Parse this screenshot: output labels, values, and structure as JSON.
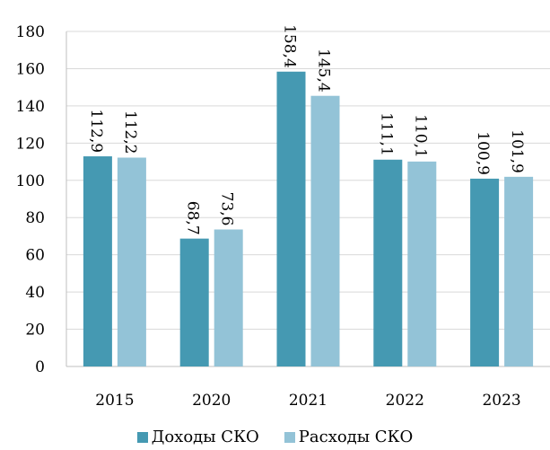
{
  "chart_data": {
    "type": "bar",
    "title": "",
    "xlabel": "",
    "ylabel": "",
    "categories": [
      "2015",
      "2020",
      "2021",
      "2022",
      "2023"
    ],
    "series": [
      {
        "name": "Доходы СКО",
        "color": "#4599b2",
        "values": [
          112.9,
          68.7,
          158.4,
          111.1,
          100.9
        ],
        "labels": [
          "112,9",
          "68,7",
          "158,4",
          "111,1",
          "100,9"
        ]
      },
      {
        "name": "Расходы СКО",
        "color": "#93c3d7",
        "values": [
          112.2,
          73.6,
          145.4,
          110.1,
          101.9
        ],
        "labels": [
          "112,2",
          "73,6",
          "145,4",
          "110,1",
          "101,9"
        ]
      }
    ],
    "ylim": [
      0,
      180
    ],
    "yticks": [
      "0",
      "20",
      "40",
      "60",
      "80",
      "100",
      "120",
      "140",
      "160",
      "180"
    ],
    "grid": true,
    "legend_position": "bottom"
  }
}
